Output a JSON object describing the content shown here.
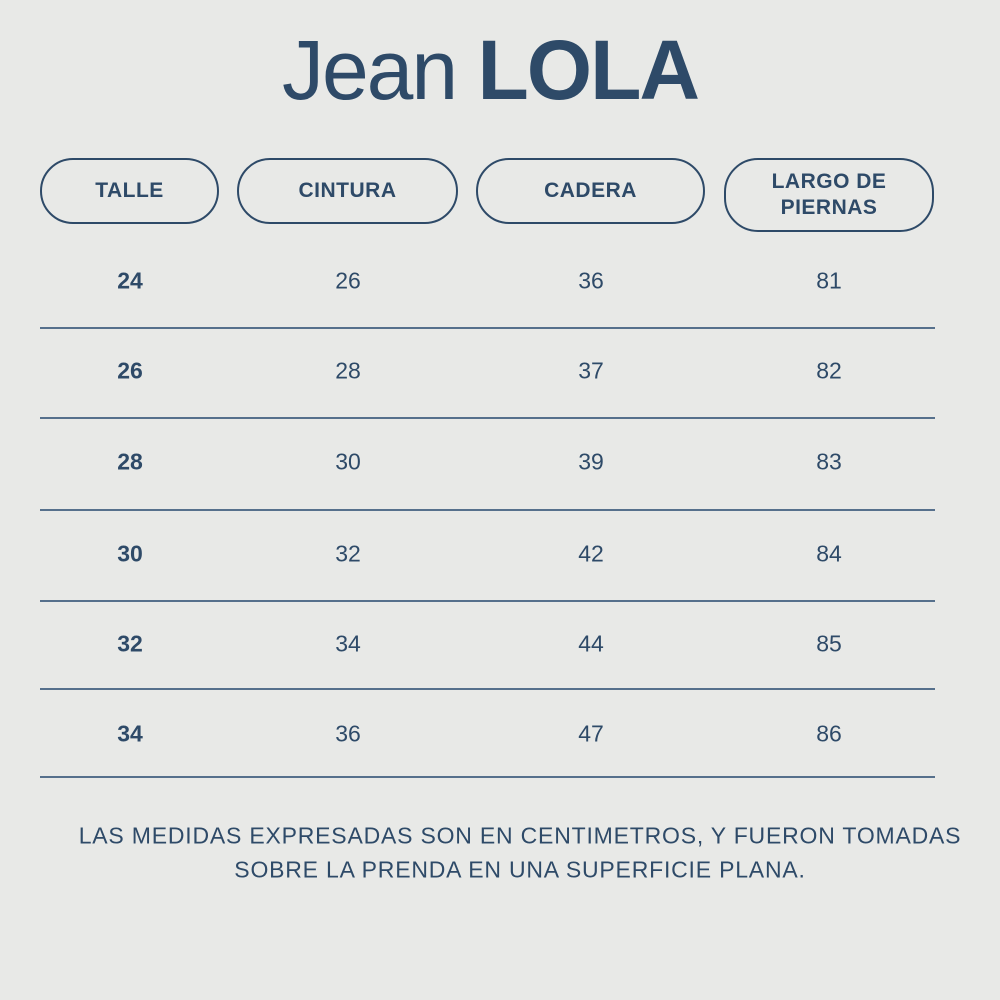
{
  "header": {
    "title_light": "Jean",
    "title_bold": "LOLA"
  },
  "table": {
    "columns": [
      "TALLE",
      "CINTURA",
      "CADERA",
      "LARGO DE PIERNAS"
    ],
    "rows": [
      [
        "24",
        "26",
        "36",
        "81"
      ],
      [
        "26",
        "28",
        "37",
        "82"
      ],
      [
        "28",
        "30",
        "39",
        "83"
      ],
      [
        "30",
        "32",
        "42",
        "84"
      ],
      [
        "32",
        "34",
        "44",
        "85"
      ],
      [
        "34",
        "36",
        "47",
        "86"
      ]
    ]
  },
  "note": {
    "lines": [
      "LAS MEDIDAS EXPRESADAS SON EN CENTIMETROS, Y FUERON TOMADAS",
      "SOBRE LA PRENDA EN UNA SUPERFICIE PLANA."
    ]
  }
}
